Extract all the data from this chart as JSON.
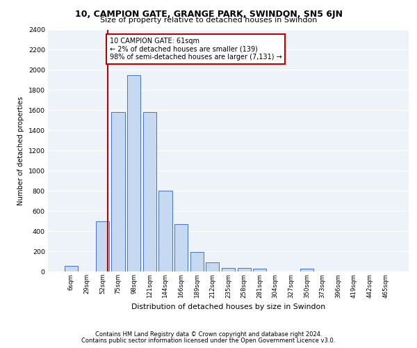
{
  "title1": "10, CAMPION GATE, GRANGE PARK, SWINDON, SN5 6JN",
  "title2": "Size of property relative to detached houses in Swindon",
  "xlabel": "Distribution of detached houses by size in Swindon",
  "ylabel": "Number of detached properties",
  "categories": [
    "6sqm",
    "29sqm",
    "52sqm",
    "75sqm",
    "98sqm",
    "121sqm",
    "144sqm",
    "166sqm",
    "189sqm",
    "212sqm",
    "235sqm",
    "258sqm",
    "281sqm",
    "304sqm",
    "327sqm",
    "350sqm",
    "373sqm",
    "396sqm",
    "419sqm",
    "442sqm",
    "465sqm"
  ],
  "values": [
    55,
    0,
    500,
    1580,
    1950,
    1580,
    800,
    470,
    195,
    90,
    35,
    35,
    25,
    0,
    0,
    25,
    0,
    0,
    0,
    0,
    0
  ],
  "bar_color": "#c6d9f0",
  "bar_edge_color": "#4472c4",
  "vline_x": 2.35,
  "vline_color": "#c00000",
  "annotation_text": "10 CAMPION GATE: 61sqm\n← 2% of detached houses are smaller (139)\n98% of semi-detached houses are larger (7,131) →",
  "annotation_box_color": "#ffffff",
  "annotation_box_edge": "#c00000",
  "ylim": [
    0,
    2400
  ],
  "yticks": [
    0,
    200,
    400,
    600,
    800,
    1000,
    1200,
    1400,
    1600,
    1800,
    2000,
    2200,
    2400
  ],
  "footer1": "Contains HM Land Registry data © Crown copyright and database right 2024.",
  "footer2": "Contains public sector information licensed under the Open Government Licence v3.0.",
  "bg_color": "#eef2f9",
  "grid_color": "#ffffff"
}
